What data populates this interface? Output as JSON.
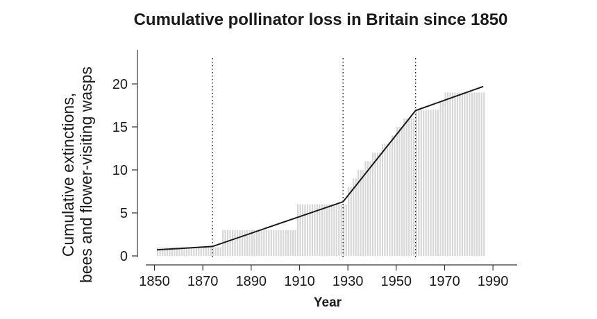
{
  "chart_data": {
    "type": "bar",
    "title": "Cumulative pollinator loss in Britain since 1850",
    "ylabel_lines": [
      "Cumulative extinctions,",
      "bees and flower-visiting wasps"
    ],
    "xlabel": "Year",
    "xlim": [
      1848,
      1997
    ],
    "ylim": [
      0,
      24
    ],
    "xticks": [
      1850,
      1870,
      1890,
      1910,
      1930,
      1950,
      1970,
      1990
    ],
    "yticks": [
      0,
      5,
      10,
      15,
      20
    ],
    "step_bars": [
      {
        "from": 1851,
        "to": 1878,
        "value": 1
      },
      {
        "from": 1878,
        "to": 1909,
        "value": 3
      },
      {
        "from": 1909,
        "to": 1924,
        "value": 6
      },
      {
        "from": 1924,
        "to": 1930,
        "value": 6
      },
      {
        "from": 1930,
        "to": 1932,
        "value": 8
      },
      {
        "from": 1932,
        "to": 1934,
        "value": 9
      },
      {
        "from": 1934,
        "to": 1937,
        "value": 10
      },
      {
        "from": 1937,
        "to": 1940,
        "value": 11
      },
      {
        "from": 1940,
        "to": 1944,
        "value": 12
      },
      {
        "from": 1944,
        "to": 1948,
        "value": 13
      },
      {
        "from": 1948,
        "to": 1950,
        "value": 14
      },
      {
        "from": 1950,
        "to": 1953,
        "value": 15
      },
      {
        "from": 1953,
        "to": 1958,
        "value": 16
      },
      {
        "from": 1958,
        "to": 1968,
        "value": 17
      },
      {
        "from": 1968,
        "to": 1970,
        "value": 18
      },
      {
        "from": 1970,
        "to": 1987,
        "value": 19
      }
    ],
    "trend_line": {
      "x": [
        1851,
        1874,
        1928,
        1958,
        1986
      ],
      "y": [
        0.7,
        1.1,
        6.3,
        16.9,
        19.7
      ]
    },
    "reference_lines_x": [
      1874,
      1928,
      1958
    ],
    "colors": {
      "bars": "#d6d6d6",
      "line": "#1a1a1a",
      "axis": "#333333"
    }
  }
}
